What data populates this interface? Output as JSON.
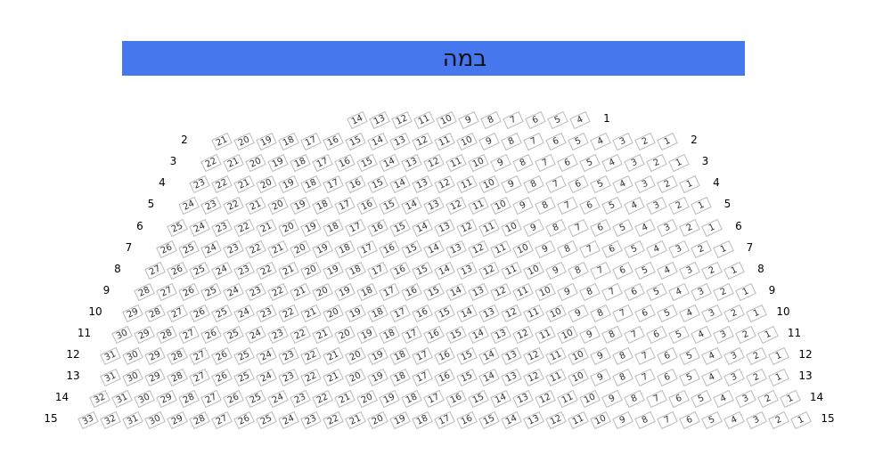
{
  "stage": {
    "label": "במה",
    "color": "#4677ef"
  },
  "colors": {
    "seat_border": "#bbbbbb",
    "seat_text": "#333333"
  },
  "rows": [
    {
      "label": "1",
      "show_left_label": false,
      "seats": [
        14,
        13,
        12,
        11,
        10,
        9,
        8,
        7,
        6,
        5,
        4
      ]
    },
    {
      "label": "2",
      "show_left_label": true,
      "seat_count": 21
    },
    {
      "label": "3",
      "show_left_label": true,
      "seat_count": 22
    },
    {
      "label": "4",
      "show_left_label": true,
      "seat_count": 23
    },
    {
      "label": "5",
      "show_left_label": true,
      "seat_count": 24
    },
    {
      "label": "6",
      "show_left_label": true,
      "seat_count": 25
    },
    {
      "label": "7",
      "show_left_label": true,
      "seat_count": 26
    },
    {
      "label": "8",
      "show_left_label": true,
      "seat_count": 27
    },
    {
      "label": "9",
      "show_left_label": true,
      "seat_count": 28
    },
    {
      "label": "10",
      "show_left_label": true,
      "seat_count": 29
    },
    {
      "label": "11",
      "show_left_label": true,
      "seat_count": 30
    },
    {
      "label": "12",
      "show_left_label": true,
      "seat_count": 31
    },
    {
      "label": "13",
      "show_left_label": true,
      "seat_count": 31
    },
    {
      "label": "14",
      "show_left_label": true,
      "seat_count": 32
    },
    {
      "label": "15",
      "show_left_label": true,
      "seat_count": 33
    }
  ]
}
